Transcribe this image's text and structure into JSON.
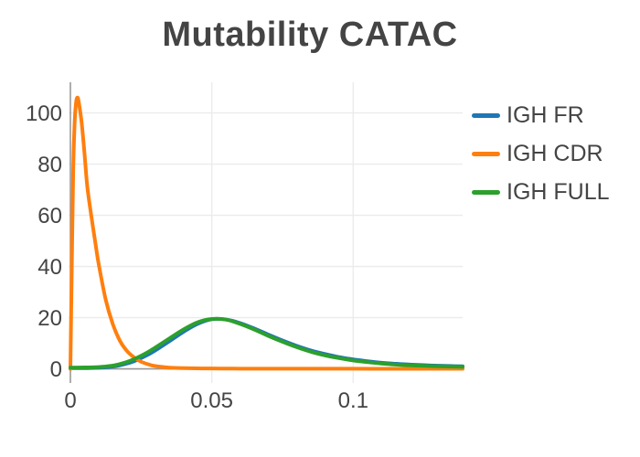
{
  "figure": {
    "title": "Mutability CATAC"
  },
  "colors": {
    "background": "#ffffff",
    "text": "#444444",
    "grid": "#ebebeb",
    "zeroline": "#999999",
    "series_blue": "#1f77b4",
    "series_orange": "#ff7f0e",
    "series_green": "#2ca02c"
  },
  "chart_data": {
    "type": "line",
    "title": "Mutability CATAC",
    "xlabel": "",
    "ylabel": "",
    "grid": true,
    "legend_position": "right",
    "x_range": [
      -0.000645,
      0.1387
    ],
    "y_range": [
      -5.5,
      112
    ],
    "x_tick_values": [
      0,
      0.05,
      0.1
    ],
    "x_tick_labels": [
      "0",
      "0.05",
      "0.1"
    ],
    "y_tick_values": [
      0,
      20,
      40,
      60,
      80,
      100
    ],
    "y_tick_labels": [
      "0",
      "20",
      "40",
      "60",
      "80",
      "100"
    ],
    "line_width": 4,
    "series": [
      {
        "name": "IGH FR",
        "color": "#1f77b4",
        "x": [
          0,
          0.005,
          0.01,
          0.0125,
          0.015,
          0.0175,
          0.02,
          0.0225,
          0.025,
          0.0275,
          0.03,
          0.035,
          0.04,
          0.045,
          0.05,
          0.055,
          0.06,
          0.065,
          0.07,
          0.075,
          0.08,
          0.085,
          0.09,
          0.095,
          0.1,
          0.105,
          0.11,
          0.115,
          0.12,
          0.125,
          0.13,
          0.135,
          0.1387
        ],
        "y": [
          0.3,
          0.3,
          0.45,
          0.6,
          0.9,
          1.4,
          2.1,
          3.0,
          4.2,
          5.6,
          7.2,
          10.8,
          14.5,
          17.6,
          19.4,
          19.3,
          17.9,
          15.8,
          13.4,
          11.1,
          9.0,
          7.2,
          5.8,
          4.6,
          3.7,
          3.0,
          2.4,
          2.0,
          1.7,
          1.45,
          1.25,
          1.1,
          1.0
        ]
      },
      {
        "name": "IGH CDR",
        "color": "#ff7f0e",
        "x": [
          0,
          0.0005,
          0.001,
          0.0015,
          0.002,
          0.0025,
          0.003,
          0.004,
          0.005,
          0.006,
          0.0075,
          0.009,
          0.01,
          0.0125,
          0.015,
          0.0175,
          0.02,
          0.0225,
          0.025,
          0.0275,
          0.03,
          0.035,
          0.04,
          0.05,
          0.06,
          0.08,
          0.1,
          0.12,
          0.1387
        ],
        "y": [
          0,
          40,
          78,
          96,
          104,
          106,
          104,
          96,
          84,
          71,
          59,
          48,
          41,
          27,
          17.5,
          11,
          7,
          4.5,
          2.8,
          1.8,
          1.1,
          0.5,
          0.3,
          0.15,
          0.1,
          0.08,
          0.06,
          0.05,
          0.05
        ]
      },
      {
        "name": "IGH FULL",
        "color": "#2ca02c",
        "x": [
          0,
          0.005,
          0.01,
          0.0125,
          0.015,
          0.0175,
          0.02,
          0.0225,
          0.025,
          0.0275,
          0.03,
          0.035,
          0.04,
          0.045,
          0.05,
          0.055,
          0.06,
          0.065,
          0.07,
          0.075,
          0.08,
          0.085,
          0.09,
          0.095,
          0.1,
          0.105,
          0.11,
          0.115,
          0.12,
          0.125,
          0.13,
          0.135,
          0.1387
        ],
        "y": [
          0.5,
          0.55,
          0.7,
          0.95,
          1.3,
          1.9,
          2.7,
          3.8,
          5.1,
          6.6,
          8.3,
          11.9,
          15.4,
          18.2,
          19.5,
          19.25,
          17.6,
          15.4,
          12.9,
          10.6,
          8.5,
          6.7,
          5.3,
          4.2,
          3.3,
          2.65,
          2.1,
          1.7,
          1.4,
          1.2,
          1.02,
          0.9,
          0.8
        ]
      }
    ]
  }
}
